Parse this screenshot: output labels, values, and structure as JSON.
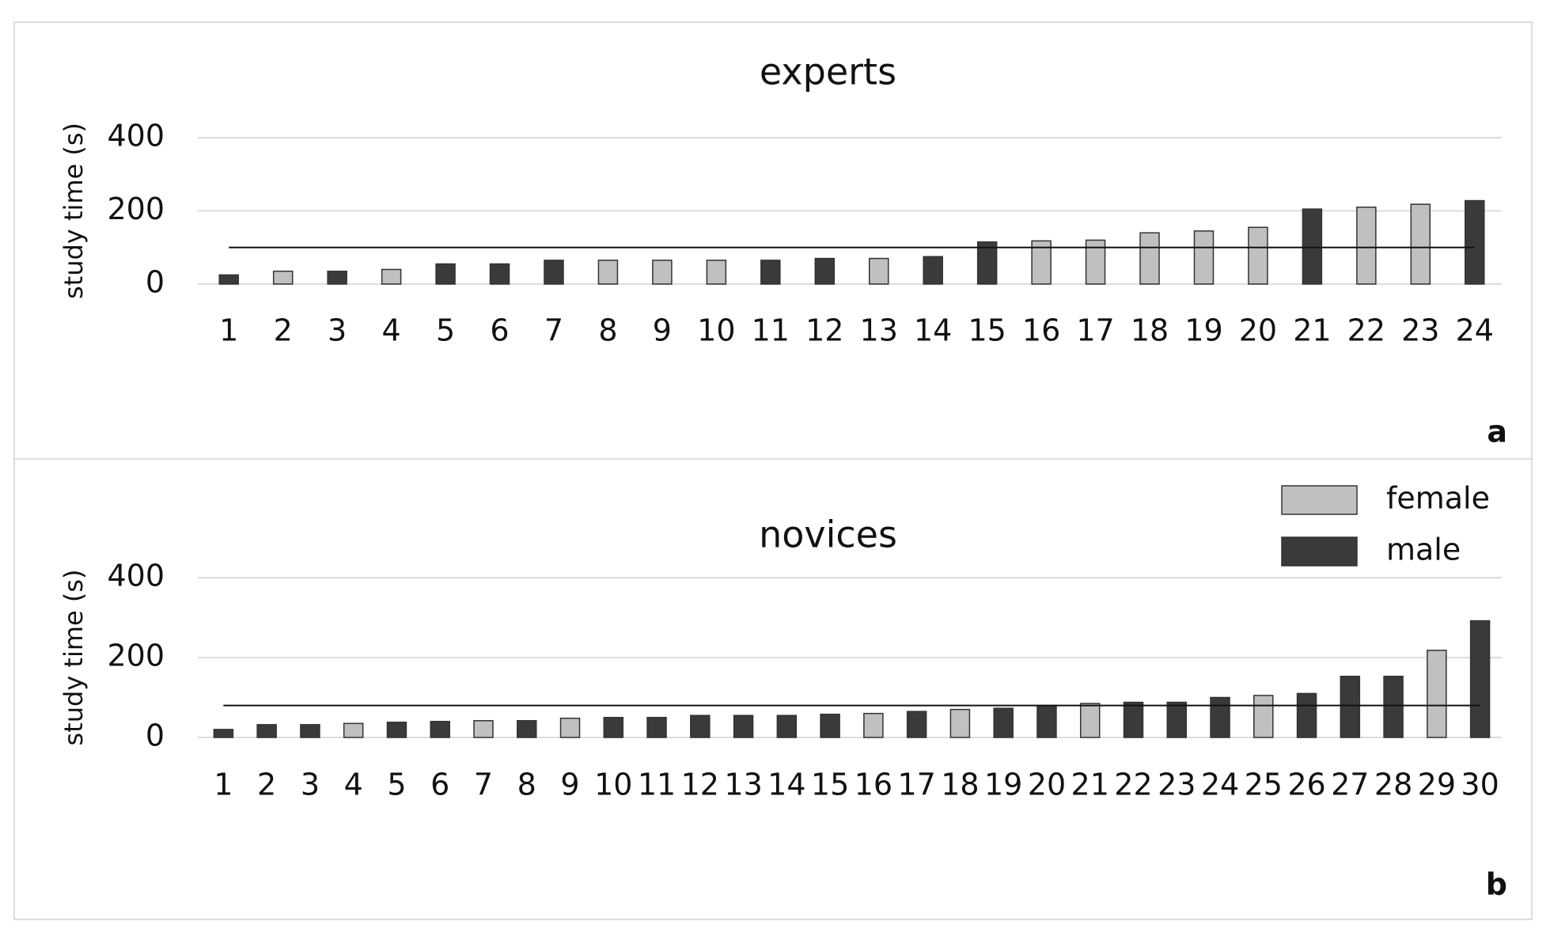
{
  "chart_data": [
    {
      "type": "bar",
      "title": "experts",
      "y_label": "study time (s)",
      "panel_label": "a",
      "categories": [
        "1",
        "2",
        "3",
        "4",
        "5",
        "6",
        "7",
        "8",
        "9",
        "10",
        "11",
        "12",
        "13",
        "14",
        "15",
        "16",
        "17",
        "18",
        "19",
        "20",
        "21",
        "22",
        "23",
        "24"
      ],
      "series": [
        {
          "name": "female",
          "color": "#c0c0c0",
          "values": [
            null,
            35,
            null,
            40,
            null,
            null,
            null,
            65,
            65,
            65,
            null,
            null,
            70,
            null,
            null,
            118,
            120,
            140,
            145,
            155,
            null,
            210,
            218,
            null
          ]
        },
        {
          "name": "male",
          "color": "#3a3a3a",
          "values": [
            25,
            null,
            35,
            null,
            55,
            55,
            65,
            null,
            null,
            null,
            65,
            70,
            null,
            75,
            115,
            null,
            null,
            null,
            null,
            null,
            205,
            null,
            null,
            228
          ]
        }
      ],
      "hline": 100,
      "ylim": [
        0,
        400
      ],
      "yticks": [
        0,
        200,
        400
      ],
      "grid": true,
      "legend": false
    },
    {
      "type": "bar",
      "title": "novices",
      "y_label": "study time (s)",
      "panel_label": "b",
      "categories": [
        "1",
        "2",
        "3",
        "4",
        "5",
        "6",
        "7",
        "8",
        "9",
        "10",
        "11",
        "12",
        "13",
        "14",
        "15",
        "16",
        "17",
        "18",
        "19",
        "20",
        "21",
        "22",
        "23",
        "24",
        "25",
        "26",
        "27",
        "28",
        "29",
        "30"
      ],
      "series": [
        {
          "name": "female",
          "color": "#c0c0c0",
          "values": [
            null,
            null,
            null,
            35,
            null,
            null,
            42,
            null,
            48,
            null,
            null,
            null,
            null,
            null,
            null,
            60,
            null,
            70,
            null,
            null,
            85,
            null,
            null,
            null,
            105,
            null,
            null,
            null,
            218,
            null
          ]
        },
        {
          "name": "male",
          "color": "#3a3a3a",
          "values": [
            20,
            32,
            32,
            null,
            38,
            40,
            null,
            42,
            null,
            50,
            50,
            55,
            55,
            55,
            58,
            null,
            65,
            null,
            73,
            80,
            null,
            88,
            88,
            100,
            null,
            110,
            153,
            153,
            null,
            292
          ]
        }
      ],
      "hline": 80,
      "ylim": [
        0,
        400
      ],
      "yticks": [
        0,
        200,
        400
      ],
      "grid": true,
      "legend": "top-right"
    }
  ]
}
